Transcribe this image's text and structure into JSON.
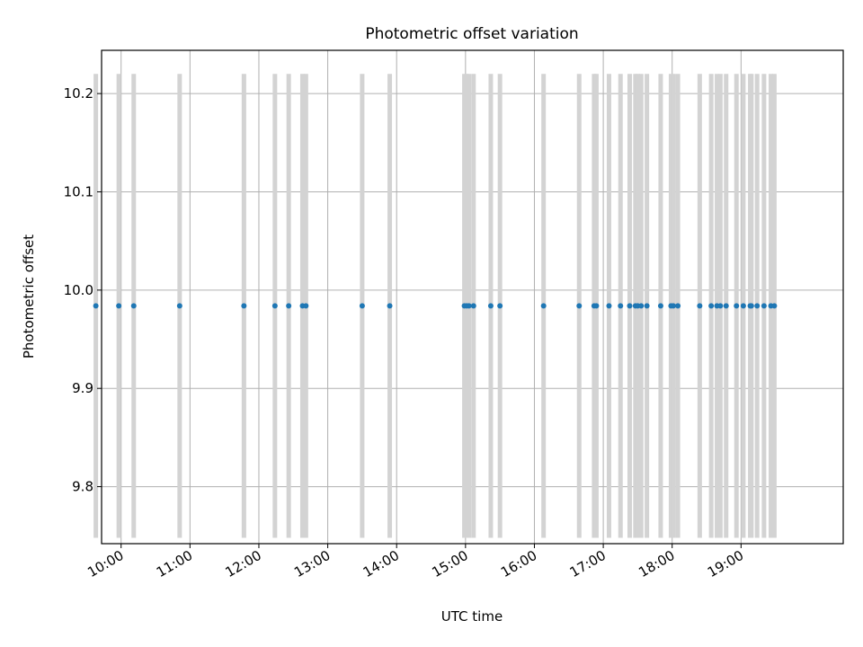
{
  "chart_data": {
    "type": "scatter",
    "title": "Photometric offset variation",
    "xlabel": "UTC time",
    "ylabel": "Photometric offset",
    "xlim": [
      "09:43",
      "20:29"
    ],
    "ylim": [
      9.742,
      10.244
    ],
    "x_ticks": [
      "10:00",
      "11:00",
      "12:00",
      "13:00",
      "14:00",
      "15:00",
      "16:00",
      "17:00",
      "18:00",
      "19:00"
    ],
    "y_ticks": [
      9.8,
      9.9,
      10.0,
      10.1,
      10.2
    ],
    "grid": true,
    "error_bar_range": [
      9.748,
      10.22
    ],
    "colors": {
      "points": "#1f77b4",
      "error_bars": "#d3d3d3",
      "grid": "#b0b0b0"
    },
    "series": [
      {
        "x": [
          "09:38",
          "09:58",
          "10:11",
          "10:51",
          "11:47",
          "12:14",
          "12:26",
          "12:38",
          "12:41",
          "13:30",
          "13:54",
          "14:59",
          "15:01",
          "15:03",
          "15:07",
          "15:22",
          "15:30",
          "16:08",
          "16:39",
          "16:52",
          "16:54",
          "17:05",
          "17:15",
          "17:23",
          "17:28",
          "17:30",
          "17:33",
          "17:38",
          "17:50",
          "17:59",
          "18:01",
          "18:05",
          "18:24",
          "18:34",
          "18:39",
          "18:42",
          "18:47",
          "18:56",
          "19:02",
          "19:08",
          "19:09",
          "19:14",
          "19:20",
          "19:26",
          "19:29"
        ],
        "y": [
          9.984,
          9.984,
          9.984,
          9.984,
          9.984,
          9.984,
          9.984,
          9.984,
          9.984,
          9.984,
          9.984,
          9.984,
          9.984,
          9.984,
          9.984,
          9.984,
          9.984,
          9.984,
          9.984,
          9.984,
          9.984,
          9.984,
          9.984,
          9.984,
          9.984,
          9.984,
          9.984,
          9.984,
          9.984,
          9.984,
          9.984,
          9.984,
          9.984,
          9.984,
          9.984,
          9.984,
          9.984,
          9.984,
          9.984,
          9.984,
          9.984,
          9.984,
          9.984,
          9.984,
          9.984
        ]
      }
    ]
  }
}
